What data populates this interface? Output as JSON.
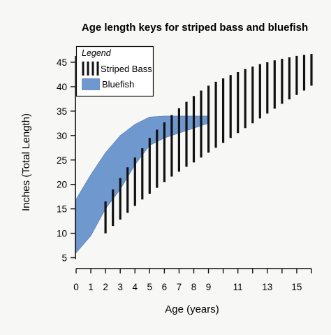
{
  "chart_data": {
    "type": "area",
    "title": "Age length keys for striped bass and bluefish",
    "xlabel": "Age (years)",
    "ylabel": "Inches (Total Length)",
    "xlim": [
      0,
      16
    ],
    "ylim": [
      5,
      46
    ],
    "x_ticks": [
      0,
      1,
      2,
      3,
      4,
      5,
      6,
      7,
      8,
      9,
      11,
      13,
      15
    ],
    "y_ticks": [
      5,
      10,
      15,
      20,
      25,
      30,
      35,
      40,
      45
    ],
    "grid": false,
    "legend": {
      "title": "Legend",
      "placement": "top-left",
      "items": [
        "Striped Bass",
        "Bluefish"
      ]
    },
    "colors": {
      "striped_bass": "#111111",
      "bluefish": "#6f98cf"
    },
    "series": [
      {
        "name": "Striped Bass",
        "kind": "vertical-range",
        "x": [
          2.0,
          2.5,
          3.0,
          3.5,
          4.0,
          4.5,
          5.0,
          5.5,
          6.0,
          6.5,
          7.0,
          7.5,
          8.0,
          8.5,
          9.0,
          9.5,
          10.0,
          10.5,
          11.0,
          11.5,
          12.0,
          12.5,
          13.0,
          13.5,
          14.0,
          14.5,
          15.0,
          15.5,
          16.0
        ],
        "low": [
          10.0,
          11.5,
          12.8,
          14.2,
          15.6,
          16.9,
          18.1,
          19.3,
          20.5,
          21.6,
          22.6,
          23.6,
          24.5,
          25.5,
          26.5,
          27.5,
          28.5,
          29.5,
          30.5,
          31.5,
          32.5,
          33.5,
          34.5,
          35.5,
          36.5,
          37.4,
          38.3,
          39.2,
          40.2
        ],
        "high": [
          16.5,
          19.0,
          21.3,
          23.5,
          25.5,
          27.4,
          29.5,
          31.2,
          32.7,
          34.2,
          35.6,
          36.9,
          38.1,
          39.2,
          40.2,
          41.0,
          41.7,
          42.4,
          43.0,
          43.6,
          44.1,
          44.6,
          45.0,
          45.4,
          45.7,
          46.0,
          46.3,
          46.5,
          46.7
        ]
      },
      {
        "name": "Bluefish",
        "kind": "band",
        "x": [
          0,
          1,
          2,
          3,
          4,
          5,
          6,
          7,
          8,
          9
        ],
        "high": [
          17.0,
          22.0,
          26.5,
          30.0,
          32.3,
          33.8,
          34.0,
          34.0,
          34.0,
          34.0
        ],
        "low": [
          6.0,
          9.5,
          15.0,
          19.0,
          24.0,
          28.0,
          29.5,
          30.5,
          31.5,
          32.5
        ]
      }
    ]
  }
}
